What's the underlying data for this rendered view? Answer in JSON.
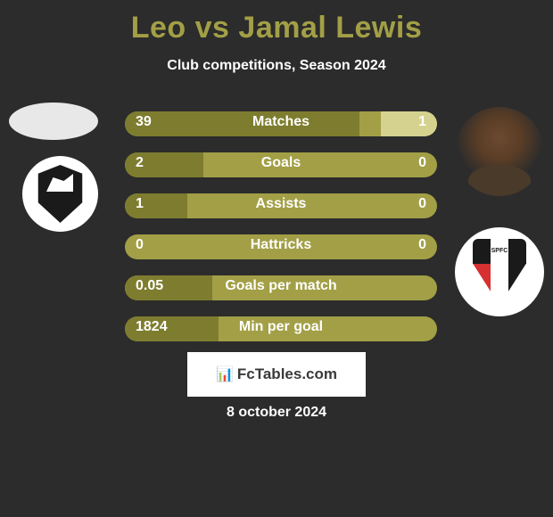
{
  "title": "Leo vs Jamal Lewis",
  "subtitle": "Club competitions, Season 2024",
  "date": "8 october 2024",
  "watermark": "FcTables.com",
  "colors": {
    "background": "#2c2c2c",
    "title_color": "#a29f46",
    "text_color": "#ffffff",
    "bar_base": "#a29f46",
    "bar_left": "#7e7d2f",
    "bar_right": "#d5d28f"
  },
  "stats": [
    {
      "label": "Matches",
      "left_value": "39",
      "right_value": "1",
      "left_pct": 75,
      "right_pct": 18
    },
    {
      "label": "Goals",
      "left_value": "2",
      "right_value": "0",
      "left_pct": 25,
      "right_pct": 0
    },
    {
      "label": "Assists",
      "left_value": "1",
      "right_value": "0",
      "left_pct": 20,
      "right_pct": 0
    },
    {
      "label": "Hattricks",
      "left_value": "0",
      "right_value": "0",
      "left_pct": 0,
      "right_pct": 0
    },
    {
      "label": "Goals per match",
      "left_value": "0.05",
      "right_value": "",
      "left_pct": 28,
      "right_pct": 0
    },
    {
      "label": "Min per goal",
      "left_value": "1824",
      "right_value": "",
      "left_pct": 30,
      "right_pct": 0
    }
  ]
}
